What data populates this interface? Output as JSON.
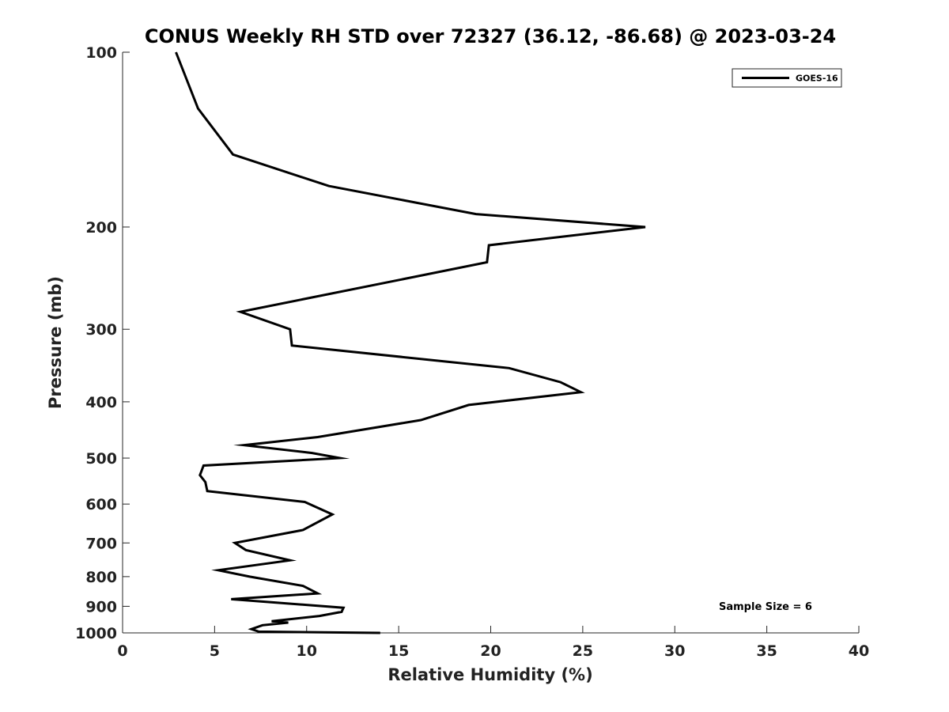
{
  "chart_data": {
    "type": "line",
    "title": "CONUS Weekly RH STD over 72327 (36.12, -86.68) @ 2023-03-24",
    "xlabel": "Relative Humidity (%)",
    "ylabel": "Pressure (mb)",
    "xlim": [
      0,
      40
    ],
    "ylim": [
      1000,
      100
    ],
    "y_scale": "log",
    "y_inverted": true,
    "grid": false,
    "legend_position": "top-right",
    "x_ticks": [
      0,
      5,
      10,
      15,
      20,
      25,
      30,
      35,
      40
    ],
    "y_ticks": [
      100,
      200,
      300,
      400,
      500,
      600,
      700,
      800,
      900,
      1000
    ],
    "series": [
      {
        "name": "GOES-16",
        "color": "#000000",
        "x": [
          2.9,
          4.1,
          6.0,
          11.2,
          19.2,
          28.4,
          19.9,
          19.8,
          6.4,
          9.1,
          9.2,
          21.0,
          23.8,
          24.9,
          18.8,
          16.2,
          10.6,
          6.6,
          10.3,
          11.8,
          4.4,
          4.2,
          4.5,
          4.6,
          9.9,
          11.4,
          9.8,
          6.1,
          6.7,
          9.1,
          5.2,
          6.9,
          9.8,
          10.6,
          5.9,
          12.0,
          11.9,
          10.7,
          8.1,
          9.0,
          7.6,
          7.0,
          7.4,
          14.0
        ],
        "y": [
          100,
          125,
          150,
          170,
          190,
          200,
          215,
          230,
          280,
          300,
          320,
          350,
          370,
          385,
          405,
          430,
          460,
          475,
          490,
          500,
          515,
          535,
          550,
          570,
          595,
          625,
          665,
          700,
          720,
          750,
          780,
          800,
          830,
          855,
          875,
          905,
          920,
          935,
          955,
          960,
          970,
          985,
          995,
          1000
        ]
      }
    ],
    "legend": [
      "GOES-16"
    ],
    "annotations": [
      "Sample Size = 6"
    ]
  }
}
